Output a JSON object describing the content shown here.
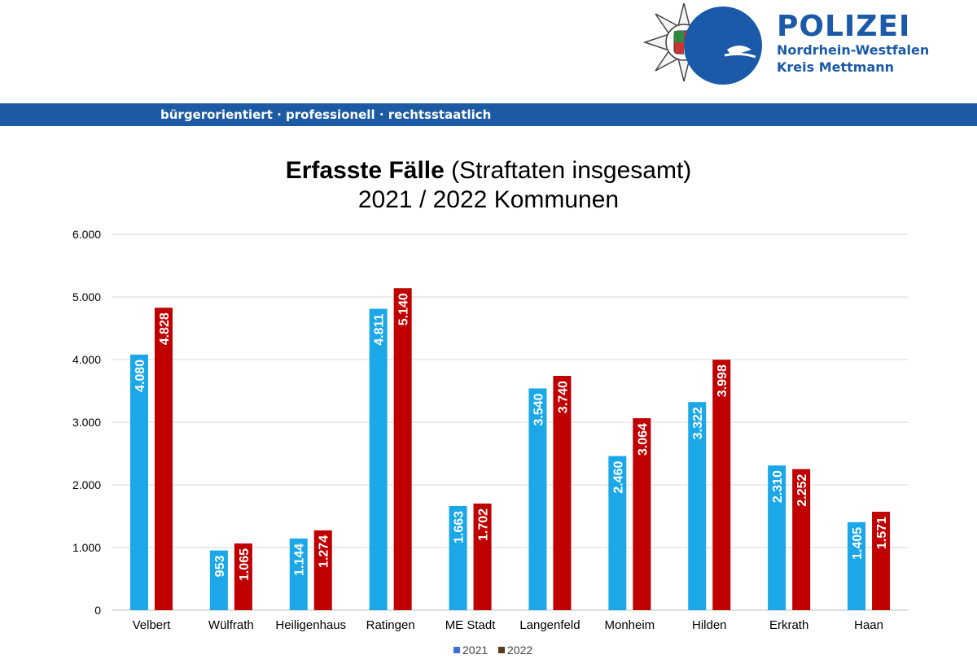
{
  "header": {
    "brand_title": "POLIZEI",
    "brand_line1": "Nordrhein-Westfalen",
    "brand_line2": "Kreis Mettmann",
    "tagline": "bürgerorientiert · professionell · rechtsstaatlich",
    "colors": {
      "brand_blue": "#1a5aa8",
      "band_blue": "#1c5aa3"
    }
  },
  "chart_title_bold": "Erfasste Fälle",
  "chart_title_rest": " (Straftaten insgesamt)",
  "chart_subtitle": "2021 / 2022 Kommunen",
  "chart_data": {
    "type": "bar",
    "categories": [
      "Velbert",
      "Wülfrath",
      "Heiligenhaus",
      "Ratingen",
      "ME Stadt",
      "Langenfeld",
      "Monheim",
      "Hilden",
      "Erkrath",
      "Haan"
    ],
    "series": [
      {
        "name": "2021",
        "values": [
          4080,
          953,
          1144,
          4811,
          1663,
          3540,
          2460,
          3322,
          2310,
          1405
        ],
        "labels": [
          "4.080",
          "953",
          "1.144",
          "4.811",
          "1.663",
          "3.540",
          "2.460",
          "3.322",
          "2.310",
          "1.405"
        ],
        "color": "#1ba7e8"
      },
      {
        "name": "2022",
        "values": [
          4828,
          1065,
          1274,
          5140,
          1702,
          3740,
          3064,
          3998,
          2252,
          1571
        ],
        "labels": [
          "4.828",
          "1.065",
          "1.274",
          "5.140",
          "1.702",
          "3.740",
          "3.064",
          "3.998",
          "2.252",
          "1.571"
        ],
        "color": "#c00000"
      }
    ],
    "legend_markers": [
      "#3f6fd6",
      "#5a3a1a"
    ],
    "yticks": [
      "0",
      "1.000",
      "2.000",
      "3.000",
      "4.000",
      "5.000",
      "6.000"
    ],
    "ylim": [
      0,
      6000
    ],
    "grid": true,
    "legend_position": "bottom"
  }
}
